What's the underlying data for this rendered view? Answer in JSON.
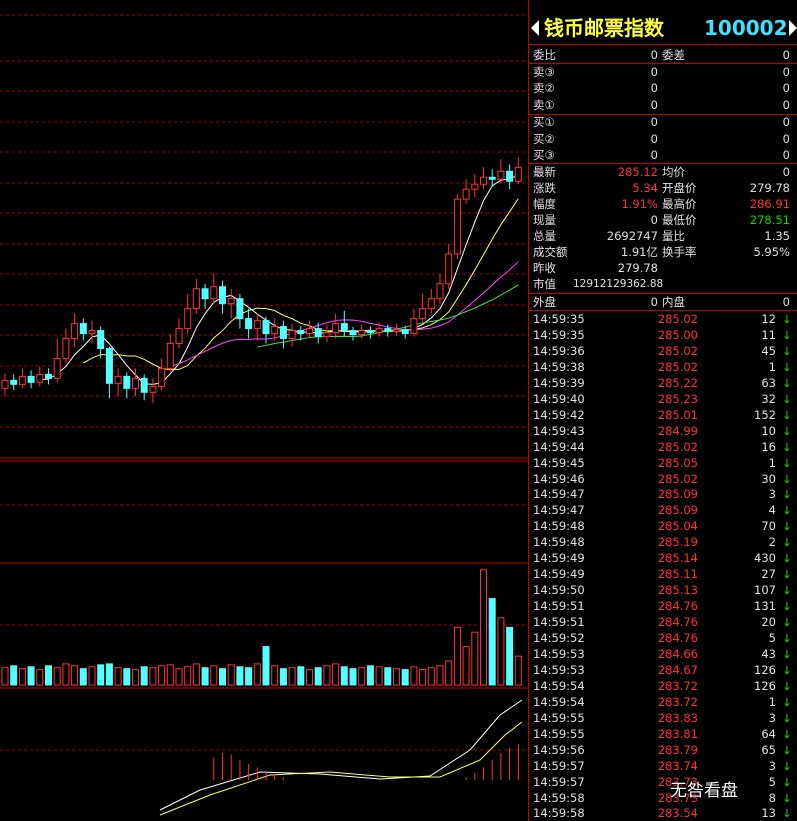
{
  "kline": {
    "ylim": [
      0,
      445
    ],
    "candles": [
      [
        70,
        78,
        85,
        62
      ],
      [
        78,
        74,
        84,
        68
      ],
      [
        74,
        82,
        90,
        70
      ],
      [
        82,
        76,
        88,
        70
      ],
      [
        76,
        84,
        92,
        72
      ],
      [
        84,
        80,
        90,
        74
      ],
      [
        80,
        100,
        120,
        76
      ],
      [
        100,
        120,
        130,
        95
      ],
      [
        120,
        135,
        145,
        112
      ],
      [
        135,
        125,
        140,
        118
      ],
      [
        125,
        128,
        138,
        115
      ],
      [
        128,
        110,
        132,
        100
      ],
      [
        110,
        75,
        112,
        60
      ],
      [
        75,
        82,
        90,
        62
      ],
      [
        82,
        70,
        86,
        60
      ],
      [
        70,
        80,
        90,
        62
      ],
      [
        80,
        66,
        84,
        58
      ],
      [
        66,
        72,
        80,
        55
      ],
      [
        72,
        90,
        100,
        68
      ],
      [
        90,
        115,
        125,
        86
      ],
      [
        115,
        130,
        140,
        110
      ],
      [
        130,
        150,
        165,
        125
      ],
      [
        150,
        170,
        180,
        145
      ],
      [
        170,
        160,
        175,
        150
      ],
      [
        160,
        172,
        185,
        155
      ],
      [
        172,
        155,
        178,
        145
      ],
      [
        155,
        160,
        170,
        140
      ],
      [
        160,
        140,
        165,
        130
      ],
      [
        140,
        130,
        150,
        120
      ],
      [
        130,
        138,
        145,
        118
      ],
      [
        138,
        125,
        142,
        115
      ],
      [
        125,
        132,
        140,
        118
      ],
      [
        132,
        120,
        138,
        110
      ],
      [
        120,
        128,
        135,
        112
      ],
      [
        128,
        125,
        132,
        118
      ],
      [
        125,
        130,
        138,
        120
      ],
      [
        130,
        122,
        136,
        115
      ],
      [
        122,
        126,
        134,
        116
      ],
      [
        126,
        135,
        145,
        120
      ],
      [
        135,
        128,
        148,
        122
      ],
      [
        128,
        124,
        132,
        118
      ],
      [
        124,
        128,
        134,
        120
      ],
      [
        128,
        126,
        132,
        120
      ],
      [
        126,
        130,
        136,
        122
      ],
      [
        130,
        127,
        134,
        122
      ],
      [
        127,
        129,
        135,
        123
      ],
      [
        129,
        125,
        133,
        120
      ],
      [
        125,
        140,
        150,
        122
      ],
      [
        140,
        150,
        165,
        136
      ],
      [
        150,
        160,
        170,
        145
      ],
      [
        160,
        175,
        185,
        155
      ],
      [
        175,
        205,
        215,
        170
      ],
      [
        205,
        260,
        265,
        200
      ],
      [
        260,
        270,
        280,
        255
      ],
      [
        270,
        275,
        285,
        262
      ],
      [
        275,
        282,
        292,
        270
      ],
      [
        282,
        280,
        290,
        272
      ],
      [
        280,
        288,
        300,
        276
      ],
      [
        288,
        278,
        295,
        270
      ],
      [
        278,
        292,
        302,
        275
      ]
    ],
    "up_color": "#ff3232",
    "down_color": "#54ffff",
    "volume_ylim": [
      0,
      125
    ],
    "volumes": [
      18,
      20,
      17,
      19,
      16,
      20,
      18,
      22,
      20,
      17,
      19,
      21,
      22,
      18,
      17,
      16,
      19,
      18,
      20,
      21,
      17,
      19,
      22,
      18,
      20,
      17,
      21,
      19,
      18,
      22,
      40,
      20,
      17,
      18,
      19,
      16,
      18,
      20,
      22,
      19,
      17,
      18,
      20,
      19,
      18,
      17,
      16,
      19,
      16,
      18,
      20,
      25,
      60,
      40,
      55,
      120,
      90,
      70,
      60,
      30
    ],
    "macd_ylim": [
      -20,
      80
    ],
    "macd": [
      0,
      0,
      0,
      0,
      0,
      0,
      0,
      0,
      0,
      0,
      0,
      0,
      0,
      0,
      0,
      0,
      0,
      0,
      0,
      0,
      0,
      0,
      0,
      0,
      25,
      30,
      28,
      22,
      18,
      14,
      10,
      6,
      3,
      0,
      0,
      0,
      0,
      0,
      0,
      0,
      0,
      0,
      0,
      0,
      0,
      0,
      0,
      0,
      0,
      0,
      0,
      0,
      0,
      3,
      8,
      14,
      22,
      30,
      36,
      40
    ]
  },
  "quote": {
    "title": "钱币邮票指数",
    "code": "100002",
    "ratio": [
      "委比",
      "0",
      "委差",
      "0"
    ],
    "asks": [
      [
        "卖③",
        "0",
        "0"
      ],
      [
        "卖②",
        "0",
        "0"
      ],
      [
        "卖①",
        "0",
        "0"
      ]
    ],
    "bids": [
      [
        "买①",
        "0",
        "0"
      ],
      [
        "买②",
        "0",
        "0"
      ],
      [
        "买③",
        "0",
        "0"
      ]
    ],
    "stats": [
      {
        "cells": [
          "最新",
          "285.12",
          "均价",
          "0"
        ],
        "color1": "#ff3232"
      },
      {
        "cells": [
          "涨跌",
          "5.34",
          "开盘价",
          "279.78"
        ],
        "color1": "#ff3232"
      },
      {
        "cells": [
          "幅度",
          "1.91%",
          "最高价",
          "286.91"
        ],
        "color1": "#ff3232",
        "color2": "#ff3232"
      },
      {
        "cells": [
          "现量",
          "0",
          "最低价",
          "278.51"
        ],
        "color2": "#00e000"
      },
      {
        "cells": [
          "总量",
          "2692747",
          "量比",
          "1.35"
        ]
      },
      {
        "cells": [
          "成交额",
          "1.91亿",
          "换手率",
          "5.95%"
        ]
      },
      {
        "cells": [
          "昨收",
          "279.78"
        ]
      }
    ],
    "market_value": [
      "市值",
      "12912129362.88"
    ],
    "outer": [
      "外盘",
      "0",
      "内盘",
      "0"
    ],
    "ticks": [
      [
        "14:59:35",
        "285.02",
        "12",
        "↓"
      ],
      [
        "14:59:35",
        "285.00",
        "11",
        "↓"
      ],
      [
        "14:59:36",
        "285.02",
        "45",
        "↓"
      ],
      [
        "14:59:38",
        "285.02",
        "1",
        "↓"
      ],
      [
        "14:59:39",
        "285.22",
        "63",
        "↓"
      ],
      [
        "14:59:40",
        "285.23",
        "32",
        "↓"
      ],
      [
        "14:59:42",
        "285.01",
        "152",
        "↓"
      ],
      [
        "14:59:43",
        "284.99",
        "10",
        "↓"
      ],
      [
        "14:59:44",
        "285.02",
        "16",
        "↓"
      ],
      [
        "14:59:45",
        "285.05",
        "1",
        "↓"
      ],
      [
        "14:59:46",
        "285.02",
        "30",
        "↓"
      ],
      [
        "14:59:47",
        "285.09",
        "3",
        "↓"
      ],
      [
        "14:59:47",
        "285.09",
        "4",
        "↓"
      ],
      [
        "14:59:48",
        "285.04",
        "70",
        "↓"
      ],
      [
        "14:59:48",
        "285.19",
        "2",
        "↓"
      ],
      [
        "14:59:49",
        "285.14",
        "430",
        "↓"
      ],
      [
        "14:59:49",
        "285.11",
        "27",
        "↓"
      ],
      [
        "14:59:50",
        "285.13",
        "107",
        "↓"
      ],
      [
        "14:59:51",
        "284.76",
        "131",
        "↓"
      ],
      [
        "14:59:51",
        "284.76",
        "20",
        "↓"
      ],
      [
        "14:59:52",
        "284.76",
        "5",
        "↓"
      ],
      [
        "14:59:53",
        "284.66",
        "43",
        "↓"
      ],
      [
        "14:59:53",
        "284.67",
        "126",
        "↓"
      ],
      [
        "14:59:54",
        "283.72",
        "126",
        "↓"
      ],
      [
        "14:59:54",
        "283.72",
        "1",
        "↓"
      ],
      [
        "14:59:55",
        "283.83",
        "3",
        "↓"
      ],
      [
        "14:59:55",
        "283.81",
        "64",
        "↓"
      ],
      [
        "14:59:56",
        "283.79",
        "65",
        "↓"
      ],
      [
        "14:59:57",
        "283.74",
        "3",
        "↓"
      ],
      [
        "14:59:57",
        "283.73",
        "5",
        "↓"
      ],
      [
        "14:59:58",
        "283.73",
        "8",
        "↓"
      ],
      [
        "14:59:58",
        "283.54",
        "13",
        "↓"
      ]
    ]
  },
  "watermark": "无咎看盘"
}
